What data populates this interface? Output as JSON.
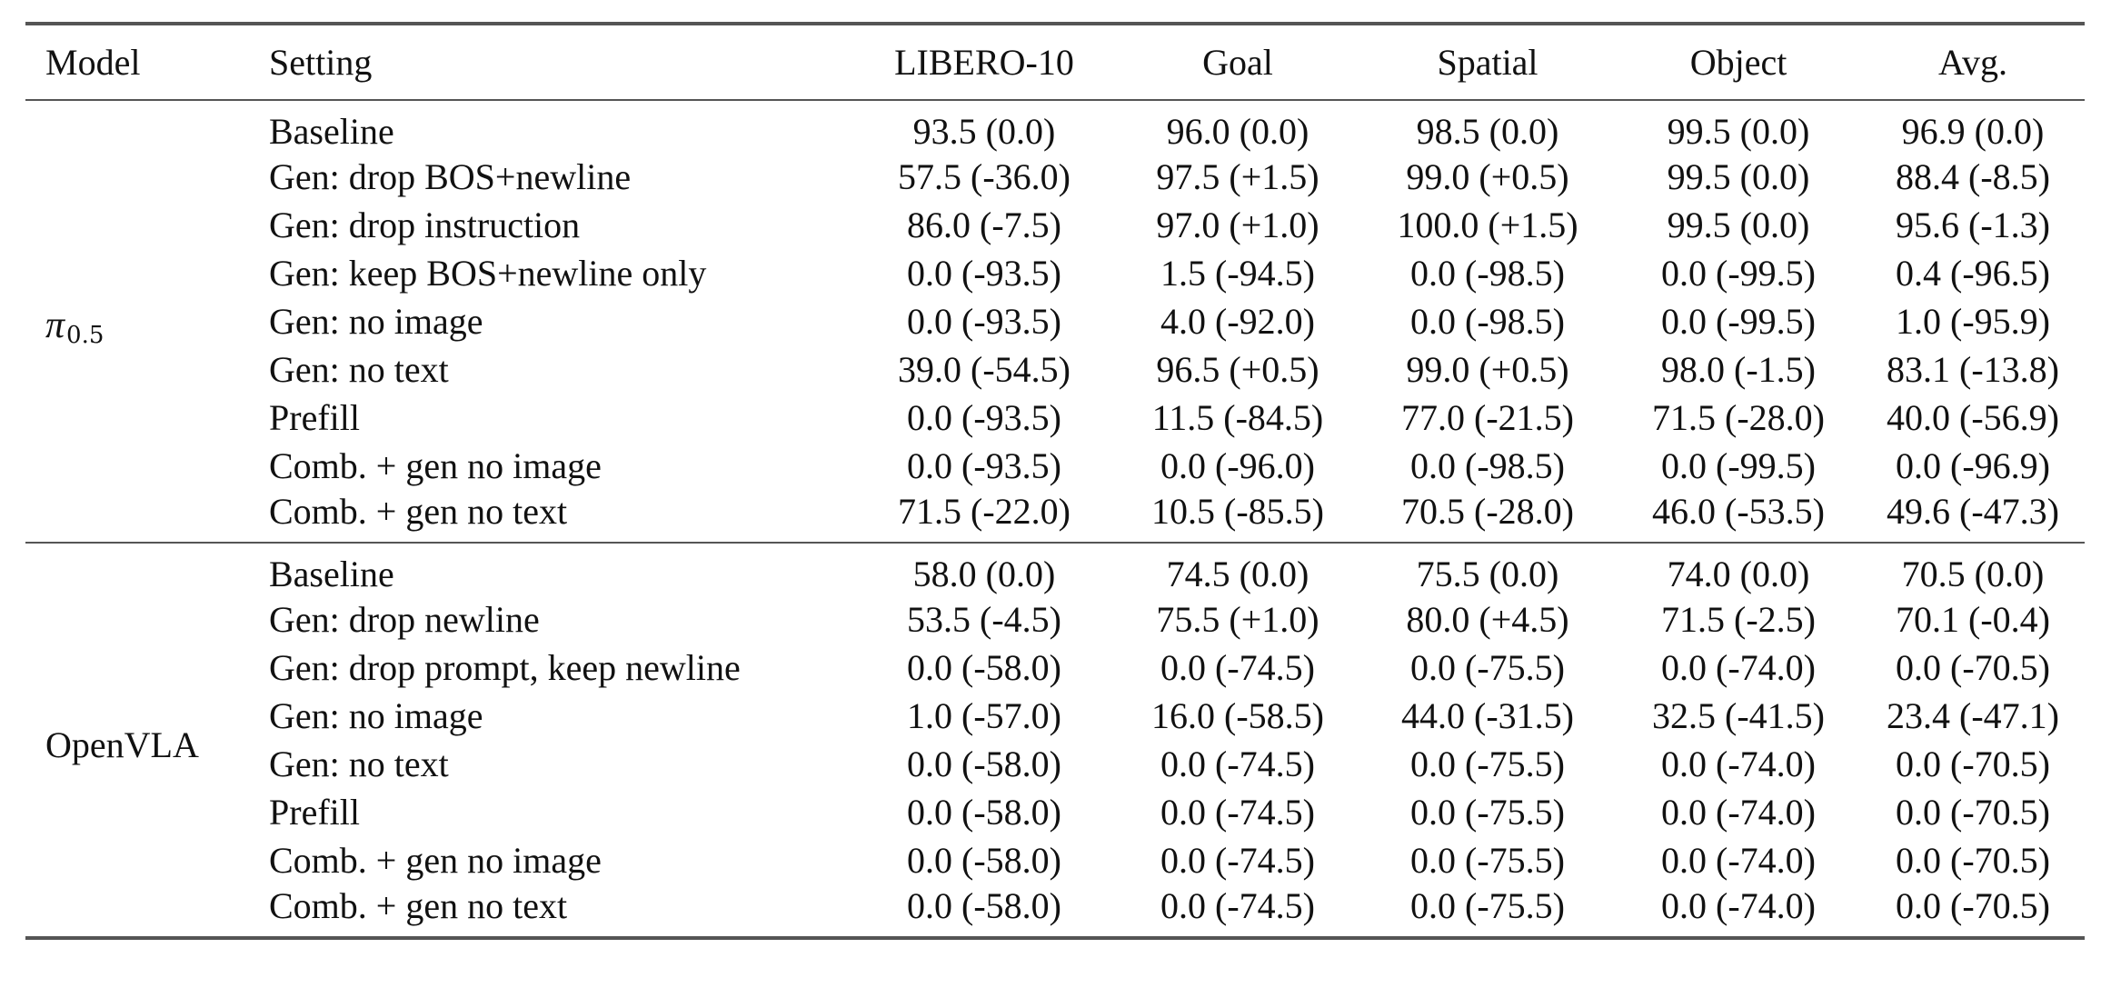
{
  "table": {
    "headers": [
      "Model",
      "Setting",
      "LIBERO-10",
      "Goal",
      "Spatial",
      "Object",
      "Avg."
    ],
    "groups": [
      {
        "model": "π0.5",
        "model_symbol": "π",
        "model_subscript": "0.5",
        "rows": [
          {
            "setting": "Baseline",
            "values": [
              "93.5 (0.0)",
              "96.0 (0.0)",
              "98.5 (0.0)",
              "99.5 (0.0)",
              "96.9 (0.0)"
            ]
          },
          {
            "setting": "Gen: drop BOS+newline",
            "values": [
              "57.5 (-36.0)",
              "97.5 (+1.5)",
              "99.0 (+0.5)",
              "99.5 (0.0)",
              "88.4 (-8.5)"
            ]
          },
          {
            "setting": "Gen: drop instruction",
            "values": [
              "86.0 (-7.5)",
              "97.0 (+1.0)",
              "100.0 (+1.5)",
              "99.5 (0.0)",
              "95.6 (-1.3)"
            ]
          },
          {
            "setting": "Gen: keep BOS+newline only",
            "values": [
              "0.0 (-93.5)",
              "1.5 (-94.5)",
              "0.0 (-98.5)",
              "0.0 (-99.5)",
              "0.4 (-96.5)"
            ]
          },
          {
            "setting": "Gen: no image",
            "values": [
              "0.0 (-93.5)",
              "4.0 (-92.0)",
              "0.0 (-98.5)",
              "0.0 (-99.5)",
              "1.0 (-95.9)"
            ]
          },
          {
            "setting": "Gen: no text",
            "values": [
              "39.0 (-54.5)",
              "96.5 (+0.5)",
              "99.0 (+0.5)",
              "98.0 (-1.5)",
              "83.1 (-13.8)"
            ]
          },
          {
            "setting": "Prefill",
            "values": [
              "0.0 (-93.5)",
              "11.5 (-84.5)",
              "77.0 (-21.5)",
              "71.5 (-28.0)",
              "40.0 (-56.9)"
            ]
          },
          {
            "setting": "Comb. + gen no image",
            "values": [
              "0.0 (-93.5)",
              "0.0 (-96.0)",
              "0.0 (-98.5)",
              "0.0 (-99.5)",
              "0.0 (-96.9)"
            ]
          },
          {
            "setting": "Comb. + gen no text",
            "values": [
              "71.5 (-22.0)",
              "10.5 (-85.5)",
              "70.5 (-28.0)",
              "46.0 (-53.5)",
              "49.6 (-47.3)"
            ]
          }
        ]
      },
      {
        "model": "OpenVLA",
        "rows": [
          {
            "setting": "Baseline",
            "values": [
              "58.0 (0.0)",
              "74.5 (0.0)",
              "75.5 (0.0)",
              "74.0 (0.0)",
              "70.5 (0.0)"
            ]
          },
          {
            "setting": "Gen: drop newline",
            "values": [
              "53.5 (-4.5)",
              "75.5 (+1.0)",
              "80.0 (+4.5)",
              "71.5 (-2.5)",
              "70.1 (-0.4)"
            ]
          },
          {
            "setting": "Gen: drop prompt, keep newline",
            "values": [
              "0.0 (-58.0)",
              "0.0 (-74.5)",
              "0.0 (-75.5)",
              "0.0 (-74.0)",
              "0.0 (-70.5)"
            ]
          },
          {
            "setting": "Gen: no image",
            "values": [
              "1.0 (-57.0)",
              "16.0 (-58.5)",
              "44.0 (-31.5)",
              "32.5 (-41.5)",
              "23.4 (-47.1)"
            ]
          },
          {
            "setting": "Gen: no text",
            "values": [
              "0.0 (-58.0)",
              "0.0 (-74.5)",
              "0.0 (-75.5)",
              "0.0 (-74.0)",
              "0.0 (-70.5)"
            ]
          },
          {
            "setting": "Prefill",
            "values": [
              "0.0 (-58.0)",
              "0.0 (-74.5)",
              "0.0 (-75.5)",
              "0.0 (-74.0)",
              "0.0 (-70.5)"
            ]
          },
          {
            "setting": "Comb. + gen no image",
            "values": [
              "0.0 (-58.0)",
              "0.0 (-74.5)",
              "0.0 (-75.5)",
              "0.0 (-74.0)",
              "0.0 (-70.5)"
            ]
          },
          {
            "setting": "Comb. + gen no text",
            "values": [
              "0.0 (-58.0)",
              "0.0 (-74.5)",
              "0.0 (-75.5)",
              "0.0 (-74.0)",
              "0.0 (-70.5)"
            ]
          }
        ]
      }
    ]
  }
}
